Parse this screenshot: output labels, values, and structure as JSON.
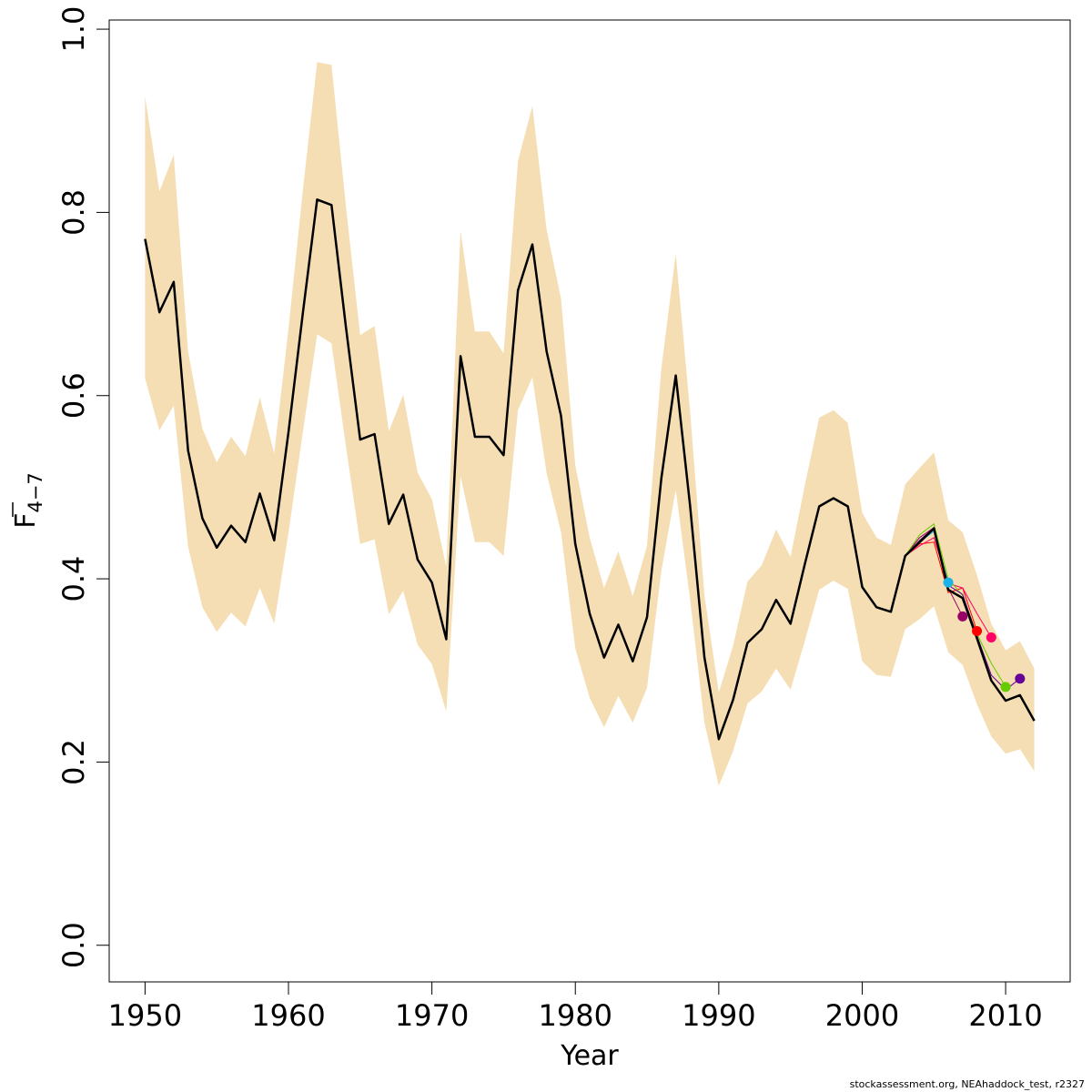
{
  "chart_data": {
    "type": "line",
    "xlabel": "Year",
    "ylabel": "F",
    "ylabel_sub": "4−7",
    "xlim": [
      1947.5,
      2014.5
    ],
    "ylim": [
      -0.04,
      1.01
    ],
    "x_ticks": [
      1950,
      1960,
      1970,
      1980,
      1990,
      2000,
      2010
    ],
    "x_tick_labels": [
      "1950",
      "1960",
      "1970",
      "1980",
      "1990",
      "2000",
      "2010"
    ],
    "y_ticks": [
      0,
      0.2,
      0.4,
      0.6,
      0.8,
      1.0
    ],
    "y_tick_labels": [
      "0.0",
      "0.2",
      "0.4",
      "0.6",
      "0.8",
      "1.0"
    ],
    "grid": false,
    "band_color": "#F5DEB3",
    "main_series": {
      "color": "#000000",
      "years": [
        1950,
        1951,
        1952,
        1953,
        1954,
        1955,
        1956,
        1957,
        1958,
        1959,
        1960,
        1961,
        1962,
        1963,
        1964,
        1965,
        1966,
        1967,
        1968,
        1969,
        1970,
        1971,
        1972,
        1973,
        1974,
        1975,
        1976,
        1977,
        1978,
        1979,
        1980,
        1981,
        1982,
        1983,
        1984,
        1985,
        1986,
        1987,
        1988,
        1989,
        1990,
        1991,
        1992,
        1993,
        1994,
        1995,
        1996,
        1997,
        1998,
        1999,
        2000,
        2001,
        2002,
        2003,
        2004,
        2005,
        2006,
        2007,
        2008,
        2009,
        2010,
        2011,
        2012
      ],
      "values": [
        0.771,
        0.691,
        0.724,
        0.54,
        0.466,
        0.434,
        0.458,
        0.44,
        0.493,
        0.442,
        0.56,
        0.69,
        0.814,
        0.808,
        0.675,
        0.552,
        0.558,
        0.46,
        0.492,
        0.421,
        0.396,
        0.334,
        0.643,
        0.555,
        0.555,
        0.535,
        0.715,
        0.765,
        0.648,
        0.578,
        0.438,
        0.362,
        0.314,
        0.35,
        0.31,
        0.358,
        0.51,
        0.622,
        0.48,
        0.314,
        0.225,
        0.268,
        0.33,
        0.345,
        0.377,
        0.351,
        0.416,
        0.479,
        0.488,
        0.479,
        0.391,
        0.369,
        0.364,
        0.425,
        0.44,
        0.455,
        0.388,
        0.379,
        0.335,
        0.289,
        0.267,
        0.273,
        0.245
      ],
      "lower": [
        0.619,
        0.562,
        0.589,
        0.435,
        0.369,
        0.342,
        0.363,
        0.348,
        0.39,
        0.351,
        0.45,
        0.56,
        0.667,
        0.657,
        0.545,
        0.438,
        0.443,
        0.361,
        0.387,
        0.328,
        0.307,
        0.255,
        0.512,
        0.44,
        0.44,
        0.425,
        0.584,
        0.62,
        0.515,
        0.451,
        0.324,
        0.27,
        0.238,
        0.272,
        0.243,
        0.281,
        0.409,
        0.497,
        0.378,
        0.243,
        0.174,
        0.212,
        0.264,
        0.277,
        0.302,
        0.279,
        0.332,
        0.388,
        0.398,
        0.389,
        0.31,
        0.295,
        0.293,
        0.345,
        0.356,
        0.37,
        0.32,
        0.306,
        0.263,
        0.228,
        0.209,
        0.214,
        0.19
      ],
      "upper": [
        0.927,
        0.823,
        0.863,
        0.648,
        0.564,
        0.527,
        0.555,
        0.534,
        0.598,
        0.537,
        0.673,
        0.824,
        0.964,
        0.961,
        0.807,
        0.666,
        0.676,
        0.561,
        0.601,
        0.516,
        0.487,
        0.413,
        0.78,
        0.67,
        0.67,
        0.646,
        0.856,
        0.916,
        0.781,
        0.706,
        0.524,
        0.445,
        0.39,
        0.43,
        0.381,
        0.436,
        0.63,
        0.755,
        0.583,
        0.382,
        0.276,
        0.327,
        0.397,
        0.415,
        0.454,
        0.424,
        0.502,
        0.576,
        0.584,
        0.57,
        0.472,
        0.445,
        0.437,
        0.503,
        0.521,
        0.538,
        0.464,
        0.451,
        0.404,
        0.351,
        0.322,
        0.332,
        0.302
      ]
    },
    "retro_series": [
      {
        "color": "#1CB4E8",
        "end_year": 2006,
        "tail_values": [
          0.44,
          0.452,
          0.396
        ],
        "tail_years": [
          2004,
          2005,
          2006
        ]
      },
      {
        "color": "#990066",
        "end_year": 2007,
        "tail_values": [
          0.445,
          0.456,
          0.39,
          0.359
        ],
        "tail_years": [
          2004,
          2005,
          2006,
          2007
        ]
      },
      {
        "color": "#FF0000",
        "end_year": 2008,
        "tail_values": [
          0.438,
          0.44,
          0.385,
          0.39,
          0.343
        ],
        "tail_years": [
          2004,
          2005,
          2006,
          2007,
          2008
        ]
      },
      {
        "color": "#FF0066",
        "end_year": 2009,
        "tail_values": [
          0.436,
          0.445,
          0.395,
          0.39,
          0.362,
          0.336
        ],
        "tail_years": [
          2004,
          2005,
          2006,
          2007,
          2008,
          2009
        ]
      },
      {
        "color": "#66CC00",
        "end_year": 2010,
        "tail_values": [
          0.448,
          0.46,
          0.4,
          0.382,
          0.34,
          0.308,
          0.282
        ],
        "tail_years": [
          2004,
          2005,
          2006,
          2007,
          2008,
          2009,
          2010
        ]
      },
      {
        "color": "#660099",
        "end_year": 2011,
        "tail_values": [
          0.442,
          0.456,
          0.393,
          0.383,
          0.338,
          0.295,
          0.279,
          0.291
        ],
        "tail_years": [
          2004,
          2005,
          2006,
          2007,
          2008,
          2009,
          2010,
          2011
        ]
      }
    ]
  },
  "credit": "stockassessment.org, NEAhaddock_test, r2327"
}
